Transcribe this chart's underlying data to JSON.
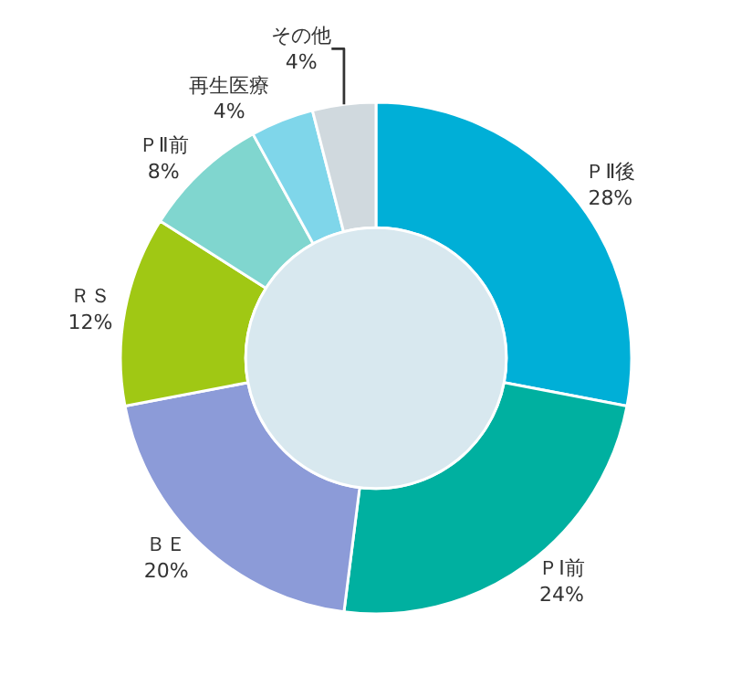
{
  "chart_data": {
    "type": "donut",
    "categories": [
      "ＰⅡ後",
      "ＰⅠ前",
      "ＢＥ",
      "ＲＳ",
      "ＰⅡ前",
      "再生医療",
      "その他"
    ],
    "values": [
      28,
      24,
      20,
      12,
      8,
      4,
      4
    ],
    "value_labels": [
      "28%",
      "24%",
      "20%",
      "12%",
      "8%",
      "4%",
      "4%"
    ],
    "colors": [
      "#00afd7",
      "#00b0a0",
      "#8c9bd8",
      "#a0c814",
      "#80d6cf",
      "#7fd6ea",
      "#d0d9de"
    ],
    "legend": false
  }
}
